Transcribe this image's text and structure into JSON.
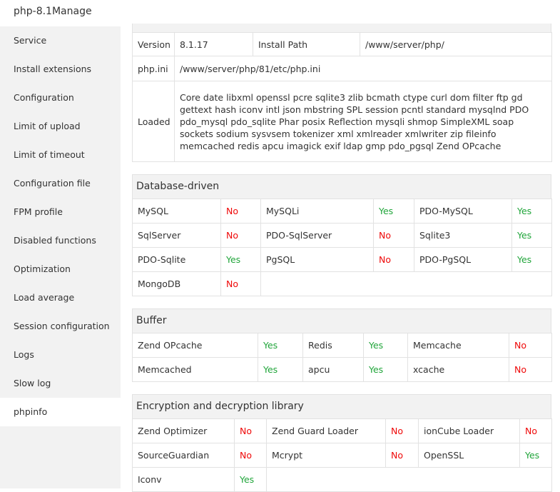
{
  "header": {
    "title": "php-8.1Manage"
  },
  "sidebar": {
    "items": [
      "Service",
      "Install extensions",
      "Configuration",
      "Limit of upload",
      "Limit of timeout",
      "Configuration file",
      "FPM profile",
      "Disabled functions",
      "Optimization",
      "Load average",
      "Session configuration",
      "Logs",
      "Slow log",
      "phpinfo"
    ],
    "active": 13
  },
  "info_table": {
    "rows": [
      [
        "Version",
        "8.1.17",
        "Install Path",
        "/www/server/php/"
      ],
      [
        "php.ini",
        "/www/server/php/81/etc/php.ini"
      ],
      [
        "Loaded",
        "Core date libxml openssl pcre sqlite3 zlib bcmath ctype curl dom filter ftp gd gettext hash iconv intl json mbstring SPL session pcntl standard mysqlnd PDO pdo_mysql pdo_sqlite Phar posix Reflection mysqli shmop SimpleXML soap sockets sodium sysvsem tokenizer xml xmlreader xmlwriter zip fileinfo memcached redis apcu imagick exif ldap gmp pdo_pgsql Zend OPcache"
      ]
    ]
  },
  "sections": [
    {
      "title": "Database-driven",
      "rows": [
        [
          {
            "name": "MySQL",
            "status": "No",
            "color": "#ef0808"
          },
          {
            "name": "MySQLi",
            "status": "Yes",
            "color": "#20a53a"
          },
          {
            "name": "PDO-MySQL",
            "status": "Yes",
            "color": "#20a53a"
          }
        ],
        [
          {
            "name": "SqlServer",
            "status": "No",
            "color": "#ef0808"
          },
          {
            "name": "PDO-SqlServer",
            "status": "No",
            "color": "#ef0808"
          },
          {
            "name": "Sqlite3",
            "status": "Yes",
            "color": "#20a53a"
          }
        ],
        [
          {
            "name": "PDO-Sqlite",
            "status": "Yes",
            "color": "#20a53a"
          },
          {
            "name": "PgSQL",
            "status": "No",
            "color": "#ef0808"
          },
          {
            "name": "PDO-PgSQL",
            "status": "Yes",
            "color": "#20a53a"
          }
        ],
        [
          {
            "name": "MongoDB",
            "status": "No",
            "color": "#ef0808"
          }
        ]
      ]
    },
    {
      "title": "Buffer",
      "rows": [
        [
          {
            "name": "Zend OPcache",
            "status": "Yes",
            "color": "#20a53a"
          },
          {
            "name": "Redis",
            "status": "Yes",
            "color": "#20a53a"
          },
          {
            "name": "Memcache",
            "status": "No",
            "color": "#ef0808"
          }
        ],
        [
          {
            "name": "Memcached",
            "status": "Yes",
            "color": "#20a53a"
          },
          {
            "name": "apcu",
            "status": "Yes",
            "color": "#20a53a"
          },
          {
            "name": "xcache",
            "status": "No",
            "color": "#ef0808"
          }
        ]
      ]
    },
    {
      "title": "Encryption and decryption library",
      "rows": [
        [
          {
            "name": "Zend Optimizer",
            "status": "No",
            "color": "#ef0808"
          },
          {
            "name": "Zend Guard Loader",
            "status": "No",
            "color": "#ef0808"
          },
          {
            "name": "ionCube Loader",
            "status": "No",
            "color": "#ef0808"
          }
        ],
        [
          {
            "name": "SourceGuardian",
            "status": "No",
            "color": "#ef0808"
          },
          {
            "name": "Mcrypt",
            "status": "No",
            "color": "#ef0808"
          },
          {
            "name": "OpenSSL",
            "status": "Yes",
            "color": "#20a53a"
          }
        ],
        [
          {
            "name": "Iconv",
            "status": "Yes",
            "color": "#20a53a"
          }
        ]
      ]
    }
  ]
}
